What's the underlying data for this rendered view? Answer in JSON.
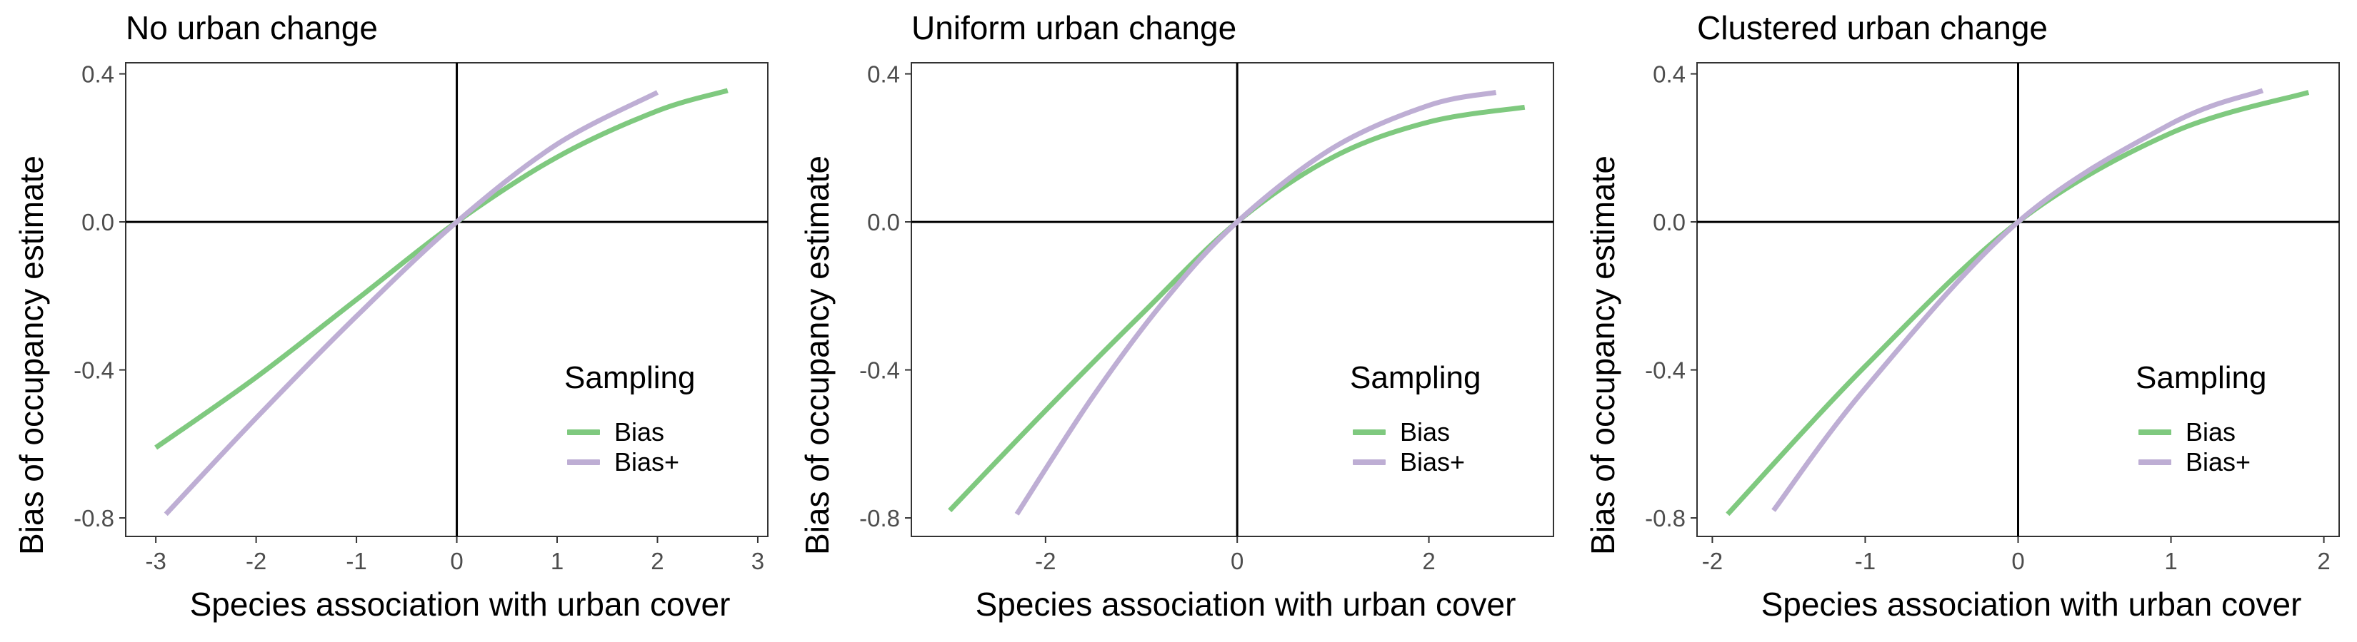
{
  "colors": {
    "Bias": "#7fc97f",
    "Bias+": "#beaed4"
  },
  "chart_data": [
    {
      "type": "line",
      "title": "No urban change",
      "xlabel": "Species association with urban cover",
      "ylabel": "Bias of occupancy estimate",
      "xlim": [
        -3.3,
        3.1
      ],
      "ylim": [
        -0.85,
        0.43
      ],
      "xticks": [
        -3,
        -2,
        -1,
        0,
        1,
        2,
        3
      ],
      "xtick_labels": [
        "-3",
        "-2",
        "-1",
        "0",
        "1",
        "2",
        "3"
      ],
      "yticks": [
        -0.8,
        -0.4,
        0.0,
        0.4
      ],
      "ytick_labels": [
        "-0.8",
        "-0.4",
        "0.0",
        "0.4"
      ],
      "legend": {
        "title": "Sampling",
        "entries": [
          "Bias",
          "Bias+"
        ],
        "position": "right"
      },
      "series": [
        {
          "name": "Bias",
          "color": "#7fc97f",
          "x": [
            -3.0,
            -2.0,
            -1.0,
            0.0,
            1.0,
            2.0,
            2.7
          ],
          "y": [
            -0.61,
            -0.42,
            -0.21,
            0.0,
            0.175,
            0.3,
            0.355
          ]
        },
        {
          "name": "Bias+",
          "color": "#beaed4",
          "x": [
            -2.9,
            -2.0,
            -1.0,
            0.0,
            1.0,
            2.0
          ],
          "y": [
            -0.79,
            -0.53,
            -0.255,
            0.0,
            0.21,
            0.35
          ]
        }
      ]
    },
    {
      "type": "line",
      "title": "Uniform urban change",
      "xlabel": "Species association with urban cover",
      "ylabel": "Bias of occupancy estimate",
      "xlim": [
        -3.4,
        3.3
      ],
      "ylim": [
        -0.85,
        0.43
      ],
      "xticks": [
        -2,
        0,
        2
      ],
      "xtick_labels": [
        "-2",
        "0",
        "2"
      ],
      "yticks": [
        -0.8,
        -0.4,
        0.0,
        0.4
      ],
      "ytick_labels": [
        "-0.8",
        "-0.4",
        "0.0",
        "0.4"
      ],
      "legend": {
        "title": "Sampling",
        "entries": [
          "Bias",
          "Bias+"
        ],
        "position": "right"
      },
      "series": [
        {
          "name": "Bias",
          "color": "#7fc97f",
          "x": [
            -3.0,
            -2.0,
            -1.0,
            0.0,
            1.0,
            2.0,
            3.0
          ],
          "y": [
            -0.78,
            -0.51,
            -0.25,
            0.0,
            0.175,
            0.27,
            0.31
          ]
        },
        {
          "name": "Bias+",
          "color": "#beaed4",
          "x": [
            -2.3,
            -1.5,
            -0.75,
            0.0,
            1.0,
            2.0,
            2.7
          ],
          "y": [
            -0.79,
            -0.47,
            -0.21,
            0.0,
            0.2,
            0.315,
            0.35
          ]
        }
      ]
    },
    {
      "type": "line",
      "title": "Clustered urban change",
      "xlabel": "Species association with urban cover",
      "ylabel": "Bias of occupancy estimate",
      "xlim": [
        -2.1,
        2.1
      ],
      "ylim": [
        -0.85,
        0.43
      ],
      "xticks": [
        -2,
        -1,
        0,
        1,
        2
      ],
      "xtick_labels": [
        "-2",
        "-1",
        "0",
        "1",
        "2"
      ],
      "yticks": [
        -0.8,
        -0.4,
        0.0,
        0.4
      ],
      "ytick_labels": [
        "-0.8",
        "-0.4",
        "0.0",
        "0.4"
      ],
      "legend": {
        "title": "Sampling",
        "entries": [
          "Bias",
          "Bias+"
        ],
        "position": "right"
      },
      "series": [
        {
          "name": "Bias",
          "color": "#7fc97f",
          "x": [
            -1.9,
            -1.0,
            0.0,
            1.0,
            1.9
          ],
          "y": [
            -0.79,
            -0.39,
            0.0,
            0.24,
            0.35
          ]
        },
        {
          "name": "Bias+",
          "color": "#beaed4",
          "x": [
            -1.6,
            -1.0,
            0.0,
            1.0,
            1.6
          ],
          "y": [
            -0.78,
            -0.45,
            0.0,
            0.265,
            0.355
          ]
        }
      ]
    }
  ]
}
